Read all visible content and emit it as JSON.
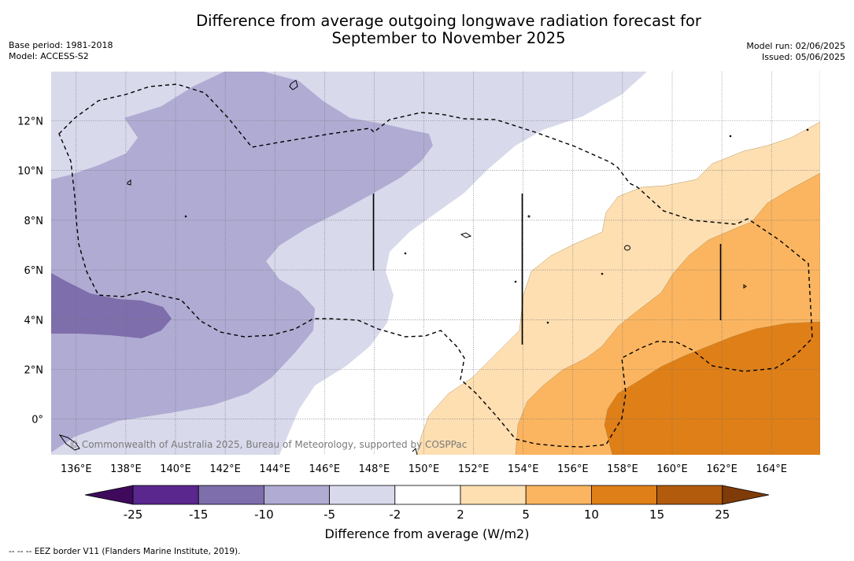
{
  "header": {
    "title_line1": "Difference from average outgoing longwave radiation forecast for",
    "title_line2": "September to November 2025",
    "base_period": "Base period: 1981-2018",
    "model": "Model: ACCESS-S2",
    "model_run": "Model run: 02/06/2025",
    "issued": "Issued: 05/06/2025"
  },
  "map": {
    "lat_labels": [
      "12°N",
      "10°N",
      "8°N",
      "6°N",
      "4°N",
      "2°N",
      "0°"
    ],
    "lon_labels": [
      "136°E",
      "138°E",
      "140°E",
      "142°E",
      "144°E",
      "146°E",
      "148°E",
      "150°E",
      "152°E",
      "154°E",
      "156°E",
      "158°E",
      "160°E",
      "162°E",
      "164°E"
    ],
    "credit": "© Commonwealth of Australia 2025, Bureau of Meteorology, supported by COSPPac"
  },
  "colorbar": {
    "tick_labels": [
      "-25",
      "-15",
      "-10",
      "-5",
      "-2",
      "2",
      "5",
      "10",
      "15",
      "25"
    ],
    "colors": [
      "#3f0a5c",
      "#59278e",
      "#7e6eac",
      "#b0abd3",
      "#d8d9eb",
      "#ffffff",
      "#fedfb2",
      "#fbb560",
      "#df7f17",
      "#b25b0c",
      "#7f3b08"
    ],
    "title": "Difference from average (W/m2)"
  },
  "footnote": "--  --  -- EEZ border V11 (Flanders Marine Institute, 2019)."
}
